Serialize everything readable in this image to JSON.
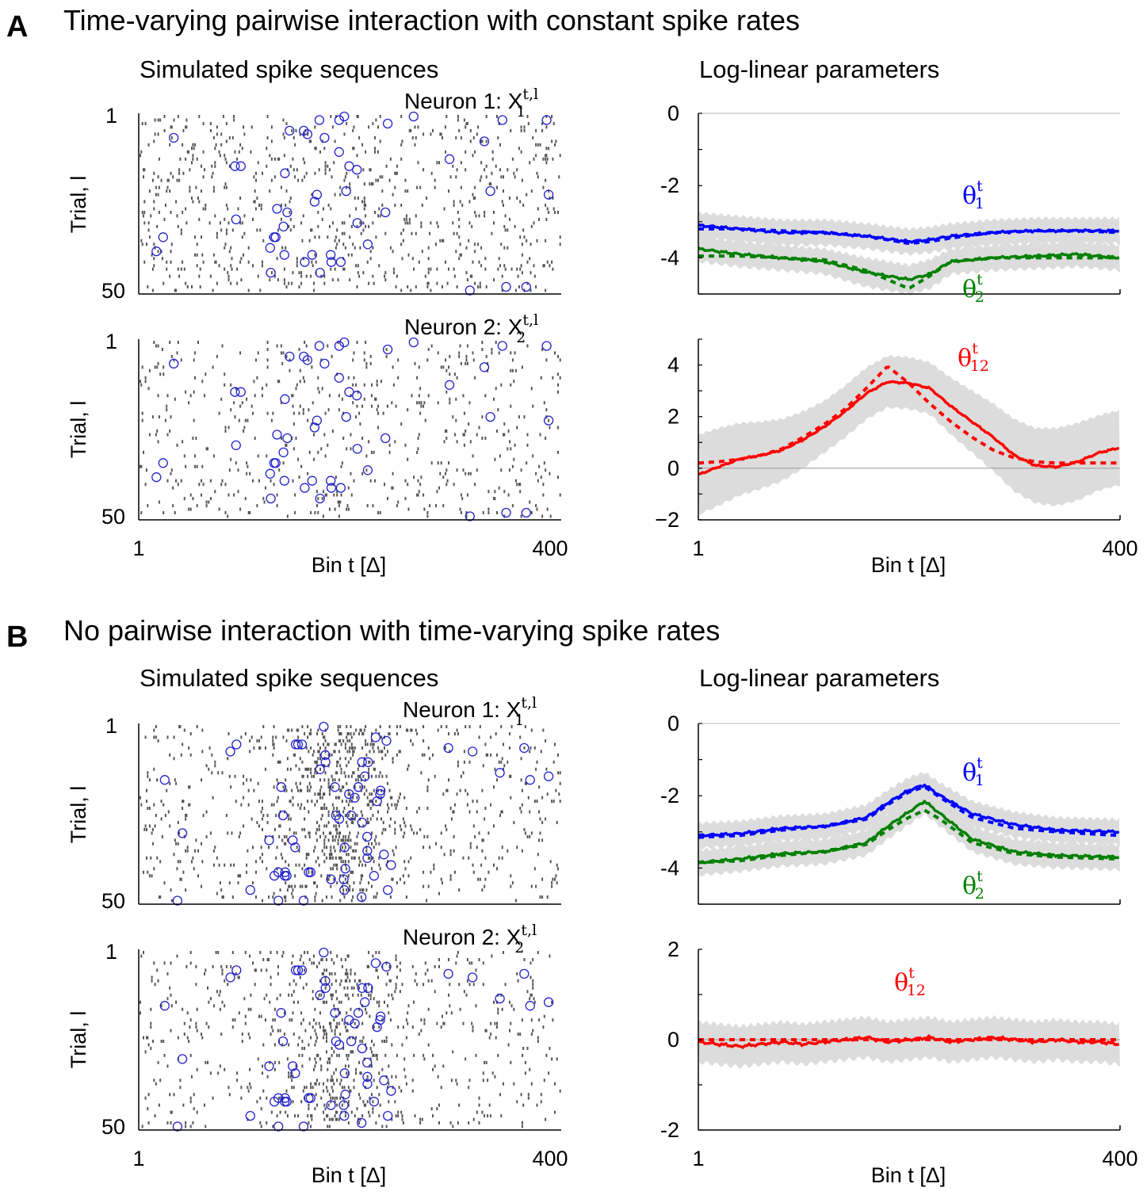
{
  "panels": [
    {
      "letter": "A",
      "title": "Time-varying pairwise interaction with constant spike rates",
      "raster_title": "Simulated spike sequences",
      "param_title": "Log-linear parameters",
      "neuron1_label": "Neuron 1: X",
      "neuron1_sup": "t,l",
      "neuron1_sub": "1",
      "neuron2_label": "Neuron 2: X",
      "neuron2_sup": "t,l",
      "neuron2_sub": "2",
      "ylabel": "Trial, l",
      "trial_ticks": [
        "1",
        "50"
      ],
      "xlabel": "Bin t [Δ]",
      "x_ticks": [
        "1",
        "400"
      ],
      "theta1": {
        "symbol": "θ",
        "sup": "t",
        "sub": "1"
      },
      "theta2": {
        "symbol": "θ",
        "sup": "t",
        "sub": "2"
      },
      "theta12": {
        "symbol": "θ",
        "sup": "t",
        "sub": "12"
      }
    },
    {
      "letter": "B",
      "title": "No pairwise interaction with time-varying spike rates",
      "raster_title": "Simulated spike sequences",
      "param_title": "Log-linear parameters",
      "neuron1_label": "Neuron 1: X",
      "neuron1_sup": "t,l",
      "neuron1_sub": "1",
      "neuron2_label": "Neuron 2: X",
      "neuron2_sup": "t,l",
      "neuron2_sub": "2",
      "ylabel": "Trial, l",
      "trial_ticks": [
        "1",
        "50"
      ],
      "xlabel": "Bin t [Δ]",
      "x_ticks": [
        "1",
        "400"
      ],
      "theta1": {
        "symbol": "θ",
        "sup": "t",
        "sub": "1"
      },
      "theta2": {
        "symbol": "θ",
        "sup": "t",
        "sub": "2"
      },
      "theta12": {
        "symbol": "θ",
        "sup": "t",
        "sub": "12"
      }
    }
  ],
  "colors": {
    "theta1": "#0000ff",
    "theta2": "#008000",
    "theta12": "#ff0000",
    "band": "#dcdcdc",
    "spike": "#555555",
    "sync": "#2222cc"
  },
  "chart_data": [
    {
      "id": "A-theta-single",
      "type": "line",
      "xlim": [
        1,
        400
      ],
      "ylim": [
        -5,
        0
      ],
      "yticks": [
        "0",
        "-2",
        "-4"
      ],
      "yticks_values": [
        0,
        -2,
        -4
      ],
      "series": [
        {
          "key": "theta1",
          "x": [
            1,
            40,
            80,
            120,
            160,
            200,
            220,
            240,
            280,
            320,
            360,
            400
          ],
          "estimated": [
            -3.1,
            -3.2,
            -3.3,
            -3.3,
            -3.4,
            -3.55,
            -3.5,
            -3.4,
            -3.3,
            -3.25,
            -3.25,
            -3.25
          ],
          "true": [
            -3.2,
            -3.2,
            -3.25,
            -3.3,
            -3.4,
            -3.6,
            -3.55,
            -3.45,
            -3.3,
            -3.25,
            -3.25,
            -3.3
          ],
          "band": [
            0.35,
            0.35,
            0.35,
            0.35,
            0.35,
            0.35,
            0.35,
            0.35,
            0.35,
            0.35,
            0.35,
            0.35
          ]
        },
        {
          "key": "theta2",
          "x": [
            1,
            40,
            80,
            120,
            160,
            200,
            220,
            240,
            280,
            320,
            360,
            400
          ],
          "estimated": [
            -3.75,
            -3.9,
            -4.0,
            -4.1,
            -4.4,
            -4.6,
            -4.45,
            -4.1,
            -4.0,
            -3.95,
            -3.9,
            -4.0
          ],
          "true": [
            -3.95,
            -3.95,
            -4.0,
            -4.05,
            -4.35,
            -4.85,
            -4.5,
            -4.1,
            -4.0,
            -4.0,
            -4.0,
            -4.0
          ],
          "band": [
            0.35,
            0.35,
            0.35,
            0.35,
            0.4,
            0.4,
            0.4,
            0.35,
            0.35,
            0.35,
            0.35,
            0.35
          ]
        }
      ]
    },
    {
      "id": "A-theta-pair",
      "type": "line",
      "xlim": [
        1,
        400
      ],
      "ylim": [
        -2,
        5
      ],
      "yticks": [
        "4",
        "2",
        "0",
        "−2"
      ],
      "yticks_values": [
        4,
        2,
        0,
        -2
      ],
      "series": [
        {
          "key": "theta12",
          "x": [
            1,
            20,
            40,
            60,
            80,
            100,
            120,
            140,
            160,
            180,
            200,
            220,
            240,
            260,
            280,
            300,
            320,
            340,
            360,
            380,
            400
          ],
          "estimated": [
            -0.25,
            0.05,
            0.35,
            0.5,
            0.7,
            1.1,
            1.6,
            2.2,
            2.9,
            3.35,
            3.3,
            3.1,
            2.4,
            1.8,
            1.2,
            0.5,
            0.1,
            0.05,
            0.25,
            0.6,
            0.8
          ],
          "true": [
            0.2,
            0.25,
            0.35,
            0.5,
            0.75,
            1.2,
            1.7,
            2.3,
            3.1,
            3.95,
            3.3,
            2.5,
            1.8,
            1.2,
            0.7,
            0.4,
            0.25,
            0.2,
            0.2,
            0.2,
            0.2
          ],
          "band": [
            1.55,
            1.5,
            1.4,
            1.3,
            1.2,
            1.1,
            1.0,
            1.0,
            1.0,
            1.0,
            1.0,
            1.0,
            1.1,
            1.2,
            1.3,
            1.4,
            1.45,
            1.5,
            1.5,
            1.45,
            1.45
          ]
        }
      ]
    },
    {
      "id": "B-theta-single",
      "type": "line",
      "xlim": [
        1,
        400
      ],
      "ylim": [
        -5,
        0
      ],
      "yticks": [
        "0",
        "-2",
        "-4"
      ],
      "yticks_values": [
        0,
        -2,
        -4
      ],
      "series": [
        {
          "key": "theta1",
          "x": [
            1,
            40,
            80,
            120,
            160,
            180,
            200,
            215,
            230,
            260,
            300,
            340,
            400
          ],
          "estimated": [
            -3.1,
            -3.05,
            -2.9,
            -2.85,
            -2.6,
            -2.2,
            -1.85,
            -1.7,
            -2.0,
            -2.5,
            -2.8,
            -2.95,
            -3.0
          ],
          "true": [
            -3.15,
            -3.1,
            -2.95,
            -2.85,
            -2.65,
            -2.25,
            -1.9,
            -1.75,
            -2.05,
            -2.6,
            -2.9,
            -3.0,
            -3.1
          ],
          "band": [
            0.35,
            0.35,
            0.35,
            0.35,
            0.35,
            0.35,
            0.35,
            0.35,
            0.35,
            0.35,
            0.35,
            0.35,
            0.35
          ]
        },
        {
          "key": "theta2",
          "x": [
            1,
            40,
            80,
            120,
            160,
            180,
            200,
            215,
            230,
            260,
            300,
            340,
            400
          ],
          "estimated": [
            -3.85,
            -3.75,
            -3.6,
            -3.55,
            -3.3,
            -2.85,
            -2.45,
            -2.15,
            -2.5,
            -3.2,
            -3.55,
            -3.65,
            -3.7
          ],
          "true": [
            -3.85,
            -3.8,
            -3.65,
            -3.55,
            -3.35,
            -2.95,
            -2.6,
            -2.4,
            -2.65,
            -3.3,
            -3.6,
            -3.7,
            -3.75
          ],
          "band": [
            0.35,
            0.35,
            0.35,
            0.35,
            0.35,
            0.35,
            0.35,
            0.35,
            0.35,
            0.35,
            0.35,
            0.35,
            0.35
          ]
        }
      ]
    },
    {
      "id": "B-theta-pair",
      "type": "line",
      "xlim": [
        1,
        400
      ],
      "ylim": [
        -2,
        2
      ],
      "yticks": [
        "2",
        "0",
        "-2"
      ],
      "yticks_values": [
        2,
        0,
        -2
      ],
      "series": [
        {
          "key": "theta12",
          "x": [
            1,
            20,
            40,
            60,
            80,
            100,
            120,
            140,
            160,
            180,
            200,
            220,
            240,
            260,
            280,
            300,
            320,
            340,
            360,
            380,
            400
          ],
          "estimated": [
            -0.05,
            -0.1,
            -0.15,
            -0.1,
            -0.05,
            -0.1,
            -0.05,
            0.0,
            0.05,
            -0.05,
            0.0,
            0.05,
            -0.05,
            0.0,
            0.05,
            0.0,
            -0.05,
            0.0,
            -0.05,
            -0.05,
            -0.1
          ],
          "true": [
            0,
            0,
            0,
            0,
            0,
            0,
            0,
            0,
            0,
            0,
            0,
            0,
            0,
            0,
            0,
            0,
            0,
            0,
            0,
            0,
            0
          ],
          "band": [
            0.45,
            0.45,
            0.45,
            0.45,
            0.45,
            0.45,
            0.45,
            0.45,
            0.45,
            0.45,
            0.45,
            0.45,
            0.45,
            0.45,
            0.45,
            0.45,
            0.45,
            0.45,
            0.45,
            0.45,
            0.45
          ]
        }
      ]
    }
  ]
}
